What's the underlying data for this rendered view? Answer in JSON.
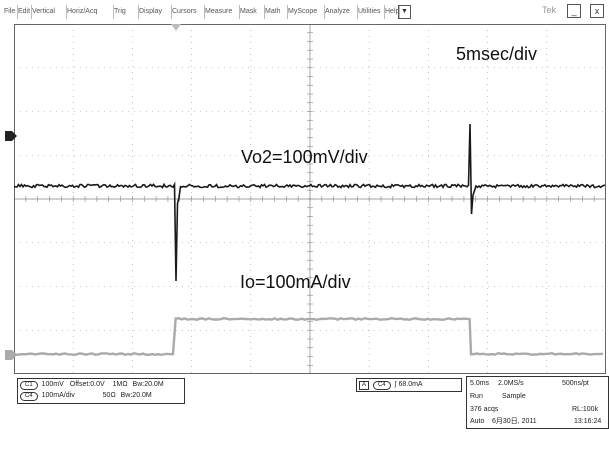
{
  "menubar": {
    "items": [
      "File",
      "Edit",
      "Vertical",
      "Horiz/Acq",
      "Trig",
      "Display",
      "Cursors",
      "Measure",
      "Mask",
      "Math",
      "MyScope",
      "Analyze",
      "Utilities",
      "Help"
    ],
    "brand": "Tek"
  },
  "annotations": {
    "timebase": "5msec/div",
    "vo2": "Vo2=100mV/div",
    "io": "Io=100mA/div"
  },
  "channels": {
    "ch1": {
      "badge": "C1",
      "scale": "100mV",
      "offset": "Offset:0.0V",
      "impedance": "1MΩ",
      "bandwidth": "Bw:20.0M"
    },
    "ch4": {
      "badge": "C4",
      "scale": "100mA/div",
      "impedance": "50Ω",
      "bandwidth": "Bw:20.0M"
    }
  },
  "trigger": {
    "source_label": "A",
    "channel": "C4",
    "level": "68.0mA"
  },
  "acquisition": {
    "horizontal_scale": "5.0ms",
    "sample_rate": "2.0MS/s",
    "time_per_point": "500ns/pt",
    "run_state": "Run",
    "mode": "Sample",
    "acqs": "376 acqs",
    "record_length": "RL:100k",
    "trigger_mode": "Auto",
    "date": "6月30日, 2011",
    "time": "13:16:24"
  },
  "colors": {
    "ch1_trace": "#1a1a1a",
    "ch4_trace": "#aaaaaa",
    "grid": "#9a9a9a"
  }
}
